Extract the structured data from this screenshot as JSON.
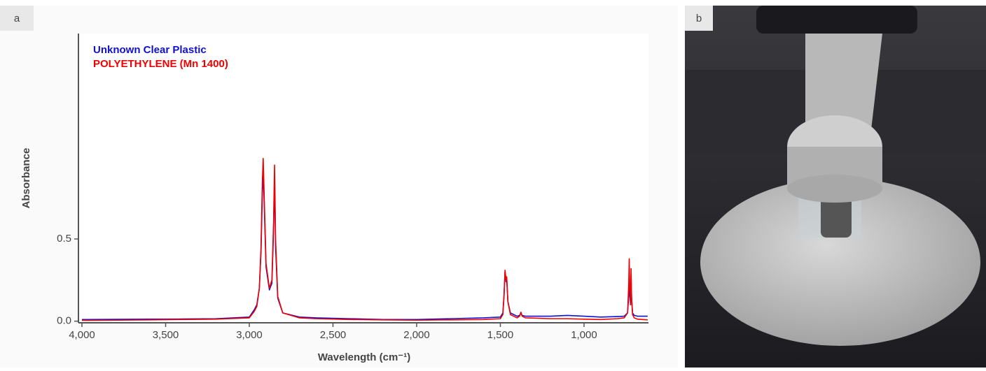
{
  "panel_labels": [
    "a",
    "b"
  ],
  "chart_data": {
    "type": "line",
    "ylabel": "Absorbance",
    "xlabel": "Wavelength (cm⁻¹)",
    "x": [
      4000,
      3800,
      3600,
      3400,
      3200,
      3000,
      2970,
      2955,
      2940,
      2930,
      2922,
      2917,
      2912,
      2900,
      2880,
      2865,
      2855,
      2849,
      2843,
      2830,
      2800,
      2700,
      2600,
      2400,
      2200,
      2000,
      1800,
      1600,
      1500,
      1485,
      1478,
      1472,
      1466,
      1462,
      1455,
      1440,
      1400,
      1385,
      1377,
      1370,
      1350,
      1200,
      1100,
      1000,
      900,
      800,
      760,
      740,
      733,
      730,
      727,
      722,
      719,
      716,
      710,
      700,
      680,
      650,
      620
    ],
    "series": [
      {
        "name": "Unknown Clear Plastic",
        "color": "#1010d0",
        "values": [
          0.01,
          0.011,
          0.012,
          0.013,
          0.015,
          0.025,
          0.07,
          0.1,
          0.2,
          0.42,
          0.78,
          0.9,
          0.75,
          0.33,
          0.19,
          0.23,
          0.55,
          0.88,
          0.45,
          0.14,
          0.05,
          0.025,
          0.02,
          0.015,
          0.01,
          0.01,
          0.015,
          0.02,
          0.025,
          0.05,
          0.16,
          0.3,
          0.24,
          0.26,
          0.12,
          0.05,
          0.03,
          0.035,
          0.05,
          0.035,
          0.03,
          0.03,
          0.035,
          0.03,
          0.025,
          0.028,
          0.03,
          0.05,
          0.15,
          0.3,
          0.17,
          0.1,
          0.28,
          0.14,
          0.05,
          0.035,
          0.03,
          0.03,
          0.03
        ]
      },
      {
        "name": "POLYETHYLENE (Mn 1400)",
        "color": "#f00000",
        "values": [
          0.005,
          0.006,
          0.008,
          0.01,
          0.012,
          0.02,
          0.06,
          0.09,
          0.2,
          0.45,
          0.85,
          0.99,
          0.8,
          0.35,
          0.2,
          0.25,
          0.6,
          0.95,
          0.5,
          0.15,
          0.05,
          0.02,
          0.015,
          0.01,
          0.008,
          0.006,
          0.008,
          0.01,
          0.015,
          0.04,
          0.15,
          0.31,
          0.25,
          0.27,
          0.12,
          0.04,
          0.02,
          0.03,
          0.055,
          0.03,
          0.02,
          0.015,
          0.015,
          0.012,
          0.01,
          0.015,
          0.02,
          0.05,
          0.22,
          0.38,
          0.2,
          0.1,
          0.32,
          0.15,
          0.04,
          0.02,
          0.012,
          0.01,
          0.008
        ]
      }
    ],
    "xlim": [
      4000,
      615
    ],
    "ylim": [
      -0.01,
      1.75
    ],
    "xticks": [
      {
        "value": 4000,
        "label": "4,000"
      },
      {
        "value": 3500,
        "label": "3,500"
      },
      {
        "value": 3000,
        "label": "3,000"
      },
      {
        "value": 2500,
        "label": "2,500"
      },
      {
        "value": 2000,
        "label": "2,000"
      },
      {
        "value": 1500,
        "label": "1,500"
      },
      {
        "value": 1000,
        "label": "1,000"
      }
    ],
    "yticks": [
      {
        "value": 0,
        "label": "0.0"
      },
      0.5
    ],
    "legend": "upper left"
  }
}
